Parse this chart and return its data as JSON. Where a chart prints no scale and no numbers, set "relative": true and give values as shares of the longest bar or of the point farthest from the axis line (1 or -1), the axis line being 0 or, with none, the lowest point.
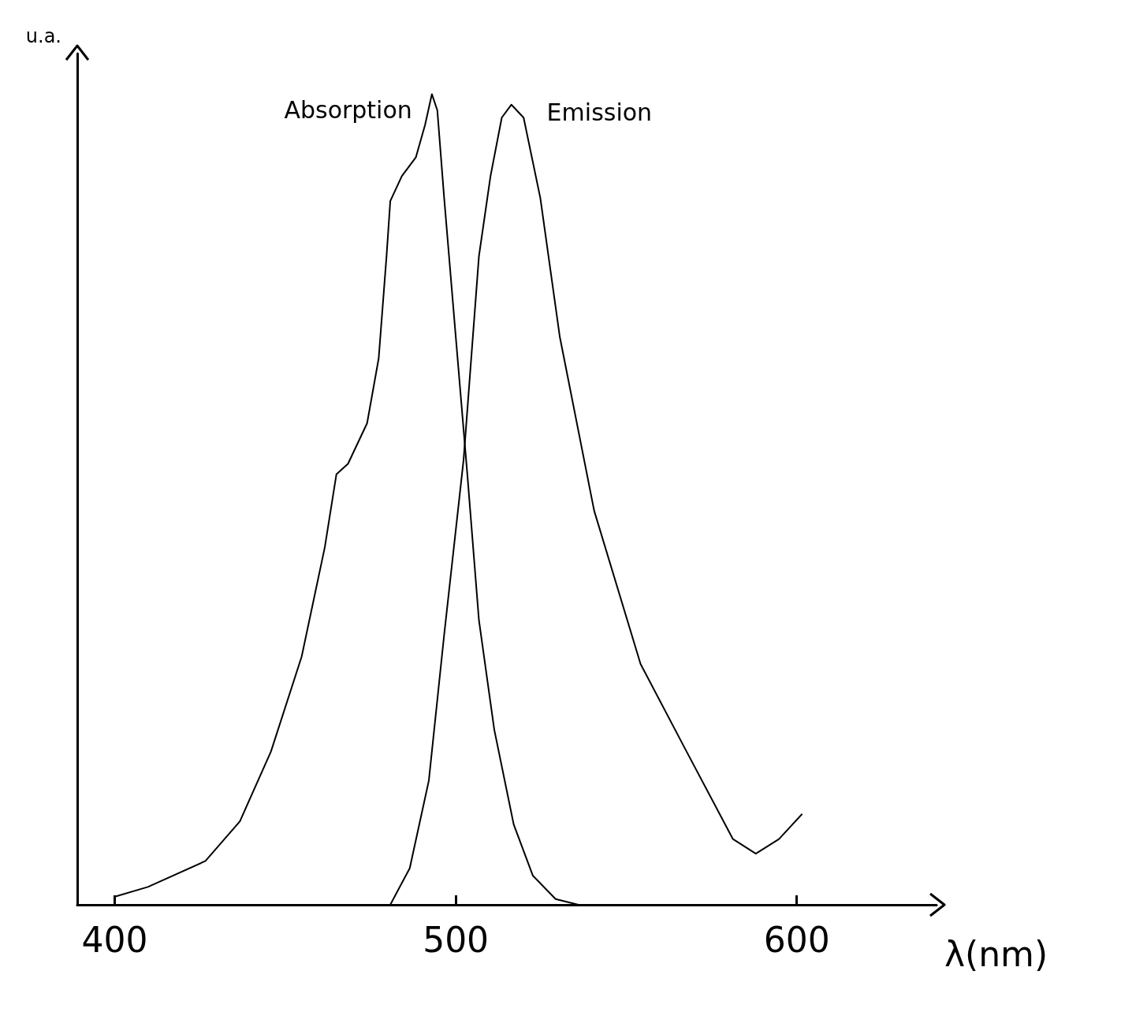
{
  "chart_data": {
    "type": "line",
    "relative": true,
    "xlabel": "λ(nm)",
    "ylabel": "u.a.",
    "xlim": [
      389,
      641
    ],
    "xticks": [
      400,
      500,
      600
    ],
    "grid": false,
    "legend": false,
    "marker": "none",
    "line_style": "solid",
    "series": [
      {
        "name": "Absorption",
        "color": "#000000",
        "x": [
          400,
          409.7,
          426.6,
          436.7,
          445.8,
          454.8,
          461.6,
          465,
          468.4,
          474,
          477.4,
          479.7,
          480.8,
          484.2,
          488.3,
          491,
          493,
          494.6,
          496.6,
          500,
          503.4,
          506.8,
          511.3,
          517,
          522.6,
          529.3,
          536
        ],
        "values": [
          0.01,
          0.022,
          0.054,
          0.103,
          0.189,
          0.306,
          0.441,
          0.531,
          0.544,
          0.594,
          0.674,
          0.8,
          0.868,
          0.899,
          0.922,
          0.962,
          1.0,
          0.98,
          0.872,
          0.701,
          0.531,
          0.351,
          0.216,
          0.099,
          0.036,
          0.007,
          0.0
        ]
      },
      {
        "name": "Emission",
        "color": "#000000",
        "x": [
          480.8,
          486.5,
          492.1,
          496.6,
          502.3,
          506.8,
          510.2,
          513.5,
          516.3,
          519.9,
          524.8,
          530.5,
          540.6,
          554.2,
          567.7,
          581.3,
          588,
          594.8,
          601.6
        ],
        "values": [
          0.0,
          0.045,
          0.153,
          0.333,
          0.549,
          0.8,
          0.899,
          0.971,
          0.987,
          0.971,
          0.872,
          0.701,
          0.486,
          0.297,
          0.189,
          0.081,
          0.063,
          0.081,
          0.112
        ]
      }
    ]
  }
}
